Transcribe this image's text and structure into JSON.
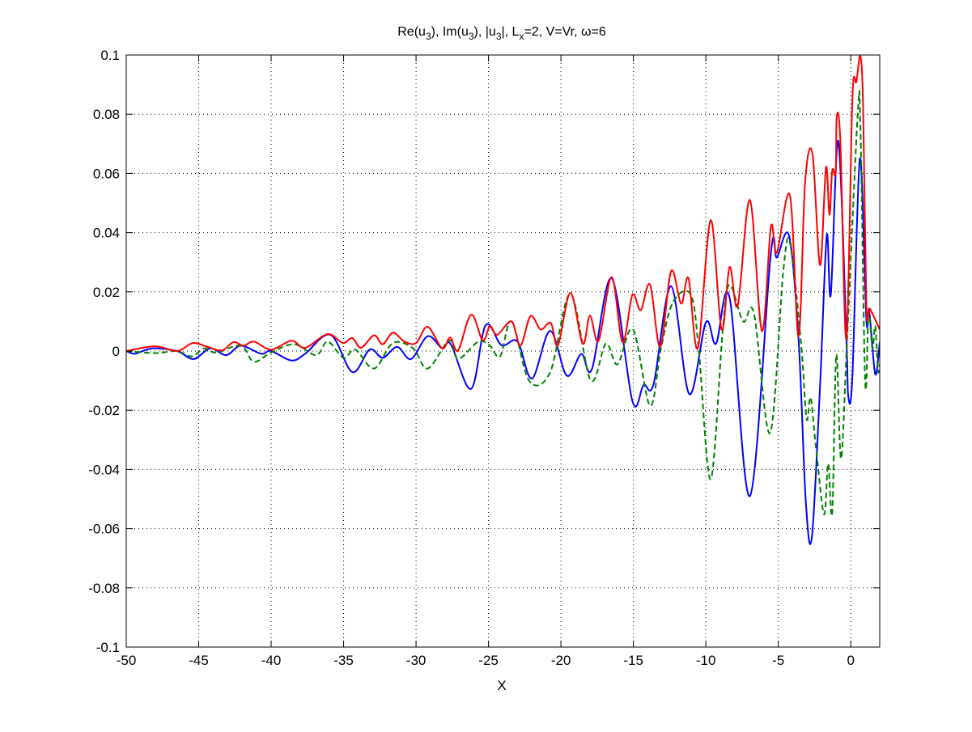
{
  "chart_data": {
    "type": "line",
    "title": {
      "parts": [
        "Re(u",
        "3",
        "), Im(u",
        "3",
        "), |u",
        "3",
        "|, L",
        "x",
        "=2,  V=Vr, ω=6"
      ]
    },
    "xlabel": "X",
    "ylabel": "",
    "xlim": [
      -50,
      2
    ],
    "ylim": [
      -0.1,
      0.1
    ],
    "grid": true,
    "xticks": [
      -50,
      -45,
      -40,
      -35,
      -30,
      -25,
      -20,
      -15,
      -10,
      -5,
      0
    ],
    "xtick_labels": [
      "-50",
      "-45",
      "-40",
      "-35",
      "-30",
      "-25",
      "-20",
      "-15",
      "-10",
      "-5",
      "0"
    ],
    "yticks": [
      -0.1,
      -0.08,
      -0.06,
      -0.04,
      -0.02,
      0,
      0.02,
      0.04,
      0.06,
      0.08,
      0.1
    ],
    "ytick_labels": [
      "-0.1",
      "-0.08",
      "-0.06",
      "-0.04",
      "-0.02",
      "0",
      "0.02",
      "0.04",
      "0.06",
      "0.08",
      "0.1"
    ],
    "series": [
      {
        "name": "Re(u3)",
        "color": "#0000ff",
        "dash": "solid",
        "points": [
          [
            -50,
            0
          ],
          [
            -49.4,
            -0.0009
          ],
          [
            -48.2,
            0.0009
          ],
          [
            -46.5,
            0
          ],
          [
            -45.35,
            -0.0027
          ],
          [
            -44.2,
            0.0009
          ],
          [
            -43.1,
            -0.0014
          ],
          [
            -42.1,
            0.0018
          ],
          [
            -40.7,
            -0.0009
          ],
          [
            -40,
            0
          ],
          [
            -38.6,
            -0.0032
          ],
          [
            -37.65,
            -0.0009
          ],
          [
            -35.9,
            0.0055
          ],
          [
            -34.4,
            -0.0071
          ],
          [
            -33.2,
            0.0005
          ],
          [
            -32.3,
            -0.0023
          ],
          [
            -31.3,
            0.0014
          ],
          [
            -30.35,
            -0.0027
          ],
          [
            -29.2,
            0.005
          ],
          [
            -28.2,
            0.0009
          ],
          [
            -27.6,
            0.0023
          ],
          [
            -26.2,
            -0.0128
          ],
          [
            -25.2,
            0.0087
          ],
          [
            -24.1,
            0.002
          ],
          [
            -23.0,
            0.0032
          ],
          [
            -22.0,
            -0.0093
          ],
          [
            -20.75,
            0.0068
          ],
          [
            -19.6,
            -0.0083
          ],
          [
            -18.6,
            -0.001
          ],
          [
            -17.86,
            -0.0061
          ],
          [
            -16.5,
            0.0246
          ],
          [
            -15.07,
            -0.0169
          ],
          [
            -14.3,
            -0.0115
          ],
          [
            -13.6,
            -0.011
          ],
          [
            -12.4,
            0.0219
          ],
          [
            -11.15,
            -0.0145
          ],
          [
            -10,
            0.0097
          ],
          [
            -9.3,
            0.0025
          ],
          [
            -8.36,
            0.018
          ],
          [
            -6.96,
            -0.049
          ],
          [
            -5.51,
            0.0332
          ],
          [
            -5.1,
            0.0316
          ],
          [
            -4.26,
            0.039
          ],
          [
            -3.6,
            0.004
          ],
          [
            -3.1,
            -0.051
          ],
          [
            -2.68,
            -0.0628
          ],
          [
            -2.12,
            -0.012
          ],
          [
            -1.66,
            0.039
          ],
          [
            -1.38,
            0.019
          ],
          [
            -0.86,
            0.071
          ],
          [
            -0.3,
            0.004
          ],
          [
            -0.17,
            -0.0153
          ],
          [
            0.11,
            -0.0088
          ],
          [
            0.63,
            0.065
          ],
          [
            1.08,
            0.0106
          ],
          [
            1.27,
            0.0138
          ],
          [
            1.69,
            -0.0078
          ],
          [
            2,
            0.003
          ]
        ]
      },
      {
        "name": "Im(u3)",
        "color": "#008000",
        "dash": "dashed",
        "points": [
          [
            -50,
            0
          ],
          [
            -48,
            -0.0007
          ],
          [
            -46.5,
            0
          ],
          [
            -45.5,
            -0.0018
          ],
          [
            -44.6,
            0.0009
          ],
          [
            -43.8,
            -0.0005
          ],
          [
            -42.1,
            0.0018
          ],
          [
            -41.2,
            -0.0036
          ],
          [
            -40,
            -0.0005
          ],
          [
            -38.4,
            0.0023
          ],
          [
            -36.9,
            -0.0014
          ],
          [
            -36.1,
            0.0032
          ],
          [
            -35,
            -0.0023
          ],
          [
            -34.2,
            0.0005
          ],
          [
            -32.9,
            -0.0059
          ],
          [
            -31.6,
            0.0027
          ],
          [
            -30.2,
            0.0009
          ],
          [
            -29.2,
            -0.0059
          ],
          [
            -27.7,
            0.0036
          ],
          [
            -27.1,
            -0.0027
          ],
          [
            -25.7,
            0.0032
          ],
          [
            -24.9,
            0.0018
          ],
          [
            -24.2,
            -0.0018
          ],
          [
            -23.4,
            0.01
          ],
          [
            -22.2,
            -0.01
          ],
          [
            -20.75,
            -0.0072
          ],
          [
            -19.35,
            0.0192
          ],
          [
            -17.95,
            -0.0099
          ],
          [
            -16.9,
            0.0025
          ],
          [
            -16.1,
            -0.0045
          ],
          [
            -15.03,
            0.0073
          ],
          [
            -13.85,
            -0.0185
          ],
          [
            -13.1,
            0.0009
          ],
          [
            -12.27,
            0.0165
          ],
          [
            -11.06,
            0.0192
          ],
          [
            -10.5,
            0.001
          ],
          [
            -9.67,
            -0.0433
          ],
          [
            -8.83,
            0.0073
          ],
          [
            -8.36,
            0.0224
          ],
          [
            -7.43,
            0.01
          ],
          [
            -6.68,
            0.0127
          ],
          [
            -5.57,
            -0.0277
          ],
          [
            -4.64,
            0.0278
          ],
          [
            -4.17,
            0.036
          ],
          [
            -3.42,
            0.0019
          ],
          [
            -3.05,
            -0.0229
          ],
          [
            -2.77,
            -0.0158
          ],
          [
            -2.4,
            -0.0326
          ],
          [
            -1.84,
            -0.0552
          ],
          [
            -1.56,
            -0.038
          ],
          [
            -1.28,
            -0.0547
          ],
          [
            -1.0,
            -0.0013
          ],
          [
            -0.67,
            -0.0363
          ],
          [
            -0.26,
            0.003
          ],
          [
            0.48,
            0.0801
          ],
          [
            0.67,
            0.075
          ],
          [
            1.0,
            -0.011
          ],
          [
            1.23,
            0.0127
          ],
          [
            1.5,
            0.0009
          ],
          [
            1.69,
            0.0084
          ],
          [
            1.88,
            -0.0067
          ],
          [
            2,
            -0.0045
          ]
        ]
      },
      {
        "name": "|u3|",
        "color": "#ff0000",
        "dash": "solid",
        "points": [
          [
            -50,
            0
          ],
          [
            -48,
            0.0016
          ],
          [
            -46.5,
            0
          ],
          [
            -45.4,
            0.0027
          ],
          [
            -44.4,
            0.0014
          ],
          [
            -43.4,
            0.0002
          ],
          [
            -42.6,
            0.003
          ],
          [
            -41.9,
            0.0018
          ],
          [
            -41.2,
            0.0032
          ],
          [
            -40,
            0.0005
          ],
          [
            -38.6,
            0.0035
          ],
          [
            -37.65,
            0.0011
          ],
          [
            -36.1,
            0.0057
          ],
          [
            -35.05,
            0.0027
          ],
          [
            -34.4,
            0.0044
          ],
          [
            -33.8,
            0.0011
          ],
          [
            -32.9,
            0.0053
          ],
          [
            -32.3,
            0.0023
          ],
          [
            -31.6,
            0.0062
          ],
          [
            -30.8,
            0.0032
          ],
          [
            -30,
            0.0027
          ],
          [
            -29.2,
            0.0082
          ],
          [
            -28.2,
            0.0009
          ],
          [
            -27.65,
            0.0046
          ],
          [
            -27.1,
            0.0002
          ],
          [
            -26.2,
            0.0123
          ],
          [
            -25.4,
            0.0036
          ],
          [
            -24.9,
            0.0084
          ],
          [
            -24.4,
            0.0055
          ],
          [
            -23.4,
            0.01
          ],
          [
            -22.8,
            0.0018
          ],
          [
            -22.1,
            0.0118
          ],
          [
            -21.4,
            0.0073
          ],
          [
            -20.7,
            0.0095
          ],
          [
            -20.2,
            0.002
          ],
          [
            -19.35,
            0.0197
          ],
          [
            -18.5,
            0.0025
          ],
          [
            -18,
            0.012
          ],
          [
            -17.4,
            0.0035
          ],
          [
            -16.5,
            0.025
          ],
          [
            -15.75,
            0.003
          ],
          [
            -15.07,
            0.019
          ],
          [
            -14.5,
            0.0138
          ],
          [
            -13.85,
            0.0224
          ],
          [
            -13.15,
            0.0014
          ],
          [
            -12.4,
            0.027
          ],
          [
            -11.7,
            0.016
          ],
          [
            -11.2,
            0.0246
          ],
          [
            -10.55,
            0.001
          ],
          [
            -9.67,
            0.0442
          ],
          [
            -8.92,
            0.0073
          ],
          [
            -8.36,
            0.0284
          ],
          [
            -7.8,
            0.0154
          ],
          [
            -6.96,
            0.051
          ],
          [
            -6.13,
            0.0068
          ],
          [
            -5.51,
            0.042
          ],
          [
            -5.1,
            0.0332
          ],
          [
            -4.2,
            0.0526
          ],
          [
            -3.6,
            0.005
          ],
          [
            -3.15,
            0.057
          ],
          [
            -2.64,
            0.0666
          ],
          [
            -2.12,
            0.029
          ],
          [
            -1.71,
            0.062
          ],
          [
            -1.47,
            0.046
          ],
          [
            -1.28,
            0.061
          ],
          [
            -1.04,
            0.06
          ],
          [
            -0.97,
            0.079
          ],
          [
            -0.72,
            0.071
          ],
          [
            -0.3,
            0.004
          ],
          [
            0.11,
            0.085
          ],
          [
            0.39,
            0.091
          ],
          [
            0.67,
            0.0995
          ],
          [
            0.86,
            0.081
          ],
          [
            1.08,
            0.0149
          ],
          [
            1.32,
            0.0143
          ],
          [
            2,
            0.0073
          ]
        ]
      }
    ]
  }
}
